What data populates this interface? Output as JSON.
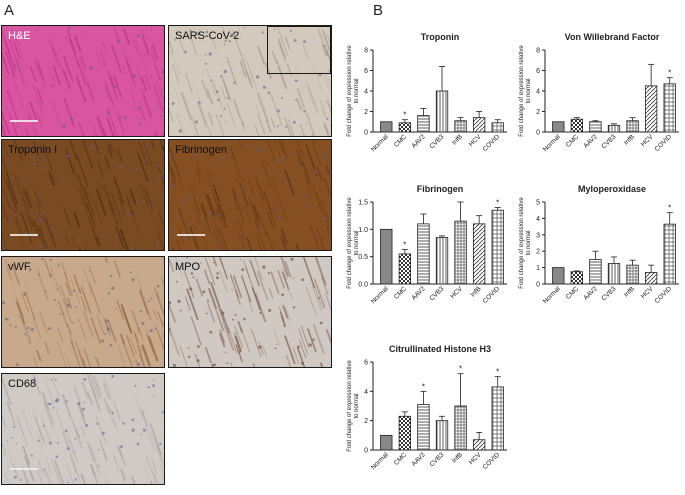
{
  "figure": {
    "panel_a_letter": "A",
    "panel_b_letter": "B"
  },
  "tiles": [
    {
      "id": "he",
      "label": "H&E",
      "bg": "#d9559f",
      "texture": "#b8337f",
      "inset": false,
      "scalebar": true
    },
    {
      "id": "sars",
      "label": "SARS-CoV-2",
      "bg": "#d3c9bc",
      "texture": "#a59a8b",
      "inset": true,
      "scalebar": false
    },
    {
      "id": "trop",
      "label": "Troponin I",
      "bg": "#7a4b22",
      "texture": "#4a2a10",
      "inset": false,
      "scalebar": true
    },
    {
      "id": "fib",
      "label": "Fibrinogen",
      "bg": "#864f22",
      "texture": "#5a3212",
      "inset": false,
      "scalebar": true
    },
    {
      "id": "vwf",
      "label": "vWF",
      "bg": "#c8a98c",
      "texture": "#8f6641",
      "inset": false,
      "scalebar": false
    },
    {
      "id": "mpo",
      "label": "MPO",
      "bg": "#cfc8c3",
      "texture": "#7b5a4a",
      "inset": false,
      "scalebar": false
    },
    {
      "id": "cd68",
      "label": "CD68",
      "bg": "#cfcac5",
      "texture": "#a79f98",
      "inset": false,
      "scalebar": true
    }
  ],
  "chart_data": [
    {
      "type": "bar",
      "title": "Troponin",
      "ylabel": "Fold change of expression relative to normal",
      "categories": [
        "Normal",
        "CMC",
        "AAV2",
        "CVB3",
        "InfB",
        "HCV",
        "COVID"
      ],
      "values": [
        1.0,
        0.9,
        1.6,
        4.0,
        1.1,
        1.4,
        0.9
      ],
      "errors": [
        0,
        0.3,
        0.7,
        2.4,
        0.3,
        0.6,
        0.3
      ],
      "ylim": [
        0,
        8
      ],
      "yticks": [
        0,
        2,
        4,
        6,
        8
      ],
      "significant": [
        false,
        true,
        false,
        false,
        false,
        false,
        false
      ]
    },
    {
      "type": "bar",
      "title": "Von Willebrand Factor",
      "ylabel": "Fold change of expression relative to normal",
      "categories": [
        "Normal",
        "CMC",
        "AAV2",
        "CVB3",
        "InfB",
        "HCV",
        "COVID"
      ],
      "values": [
        1.0,
        1.25,
        1.0,
        0.65,
        1.1,
        4.5,
        4.7
      ],
      "errors": [
        0,
        0.15,
        0.1,
        0.15,
        0.3,
        2.1,
        0.6
      ],
      "ylim": [
        0,
        8
      ],
      "yticks": [
        0,
        2,
        4,
        6,
        8
      ],
      "significant": [
        false,
        false,
        false,
        false,
        false,
        false,
        true
      ]
    },
    {
      "type": "bar",
      "title": "Fibrinogen",
      "ylabel": "Fold change of expression relative to normal",
      "categories": [
        "Normal",
        "CMC",
        "AAV2",
        "CVB3",
        "HCV",
        "InfB",
        "COVID"
      ],
      "values": [
        1.0,
        0.55,
        1.1,
        0.85,
        1.15,
        1.1,
        1.35
      ],
      "errors": [
        0,
        0.08,
        0.18,
        0.03,
        0.35,
        0.15,
        0.05
      ],
      "ylim": [
        0,
        1.5
      ],
      "yticks": [
        "0.0",
        "0.5",
        "1.0",
        "1.5"
      ],
      "significant": [
        false,
        true,
        false,
        false,
        false,
        false,
        true
      ]
    },
    {
      "type": "bar",
      "title": "Myloperoxidase",
      "ylabel": "Fold change of expression relative to normal",
      "categories": [
        "Normal",
        "CMC",
        "AAV2",
        "CVB3",
        "InfB",
        "HCV",
        "COVID"
      ],
      "values": [
        1.0,
        0.75,
        1.5,
        1.25,
        1.15,
        0.7,
        3.65
      ],
      "errors": [
        0,
        0.05,
        0.5,
        0.4,
        0.3,
        0.45,
        0.7
      ],
      "ylim": [
        0,
        5
      ],
      "yticks": [
        0,
        1,
        2,
        3,
        4,
        5
      ],
      "significant": [
        false,
        false,
        false,
        false,
        false,
        false,
        true
      ]
    },
    {
      "type": "bar",
      "title": "Citrullinated Histone H3",
      "ylabel": "Fold change of expression relative to normal",
      "categories": [
        "Normal",
        "CMC",
        "AAV2",
        "CVB3",
        "InfB",
        "HCV",
        "COVID"
      ],
      "values": [
        1.0,
        2.3,
        3.1,
        2.0,
        3.0,
        0.7,
        4.3
      ],
      "errors": [
        0,
        0.3,
        0.9,
        0.3,
        2.2,
        0.5,
        0.7
      ],
      "ylim": [
        0,
        6
      ],
      "yticks": [
        0,
        2,
        4,
        6
      ],
      "significant": [
        false,
        false,
        true,
        false,
        true,
        false,
        true
      ]
    }
  ]
}
